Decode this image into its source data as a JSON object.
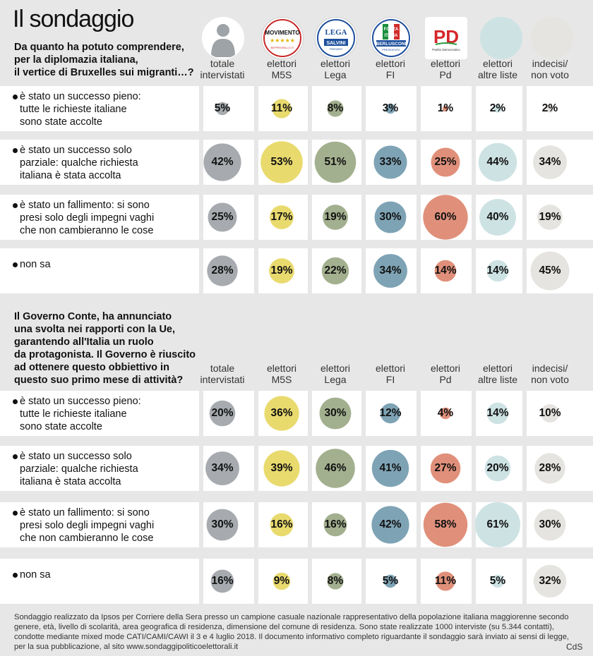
{
  "title": "Il sondaggio",
  "columns": [
    {
      "id": "totale",
      "label": "totale\nintervistati",
      "icon": "person-silhouette-icon",
      "icon_color": "#9ea3a7"
    },
    {
      "id": "m5s",
      "label": "elettori\nM5S",
      "icon": "movimento-5-stelle-logo-icon",
      "icon_color": "#ffffff"
    },
    {
      "id": "lega",
      "label": "elettori\nLega",
      "icon": "lega-salvini-logo-icon",
      "icon_color": "#ffffff"
    },
    {
      "id": "fi",
      "label": "elettori\nFI",
      "icon": "forza-italia-logo-icon",
      "icon_color": "#ffffff"
    },
    {
      "id": "pd",
      "label": "elettori\nPd",
      "icon": "partito-democratico-logo-icon",
      "icon_color": "#ffffff"
    },
    {
      "id": "altre",
      "label": "elettori\naltre liste",
      "icon": "altre-liste-circle-icon",
      "icon_color": "#cde2e3"
    },
    {
      "id": "indecisi",
      "label": "indecisi/\nnon voto",
      "icon": "indecisi-circle-icon",
      "icon_color": "#e6e4e0"
    }
  ],
  "logos": {
    "m5s": {
      "line1": "MOVIMENTO",
      "line2": "★★★★★",
      "line3": "BEPPEGRILLO.IT"
    },
    "lega": {
      "line1": "LEGA",
      "line2": "SALVINI",
      "line3": "PREMIER"
    },
    "fi": {
      "line1": "FORZA",
      "line2": "ITALIA",
      "line3": "BERLUSCONI",
      "line4": "PRESIDENTE"
    },
    "pd": {
      "line1": "PD",
      "line2": "Partito Democratico"
    }
  },
  "colors": {
    "totale": "#a7abaf",
    "m5s": "#e9da6e",
    "lega": "#a3b08f",
    "fi": "#7ea3b5",
    "pd": "#e0907a",
    "altre": "#cde2e3",
    "indecisi": "#e6e4e0"
  },
  "chart_data": [
    {
      "type": "table",
      "title": "Da quanto ha potuto comprendere,\nper la diplomazia italiana,\nil vertice di Bruxelles sui migranti…?",
      "series_names": [
        "totale intervistati",
        "elettori M5S",
        "elettori Lega",
        "elettori FI",
        "elettori Pd",
        "elettori altre liste",
        "indecisi/non voto"
      ],
      "rows": [
        {
          "label": "è stato un successo pieno:\ntutte le richieste italiane\nsono state accolte",
          "values": [
            5,
            11,
            8,
            3,
            1,
            2,
            2
          ],
          "labels": [
            "5%",
            "11%",
            "8%",
            "3%",
            "1%",
            "2%",
            "2%"
          ]
        },
        {
          "label": "è stato un successo solo\nparziale: qualche richiesta\nitaliana è stata accolta",
          "values": [
            42,
            53,
            51,
            33,
            25,
            44,
            34
          ],
          "labels": [
            "42%",
            "53%",
            "51%",
            "33%",
            "25%",
            "44%",
            "34%"
          ]
        },
        {
          "label": "è stato un fallimento: si sono\npresi solo degli impegni vaghi\nche non cambieranno le cose",
          "values": [
            25,
            17,
            19,
            30,
            60,
            40,
            19
          ],
          "labels": [
            "25%",
            "17%",
            "19%",
            "30%",
            "60%",
            "40%",
            "19%"
          ]
        },
        {
          "label": "non sa",
          "values": [
            28,
            19,
            22,
            34,
            14,
            14,
            45
          ],
          "labels": [
            "28%",
            "19%",
            "22%",
            "34%",
            "14%",
            "14%",
            "45%"
          ]
        }
      ]
    },
    {
      "type": "table",
      "title": "Il Governo Conte, ha annunciato\nuna svolta nei rapporti con la Ue,\ngarantendo all'Italia un ruolo\nda protagonista. Il Governo è riuscito\nad ottenere questo obbiettivo in\nquesto suo primo mese di attività?",
      "series_names": [
        "totale intervistati",
        "elettori M5S",
        "elettori Lega",
        "elettori FI",
        "elettori Pd",
        "elettori altre liste",
        "indecisi/non voto"
      ],
      "rows": [
        {
          "label": "è stato un successo pieno:\ntutte le richieste italiane\nsono state accolte",
          "values": [
            20,
            36,
            30,
            12,
            4,
            14,
            10
          ],
          "labels": [
            "20%",
            "36%",
            "30%",
            "12%",
            "4%",
            "14%",
            "10%"
          ]
        },
        {
          "label": "è stato un successo solo\nparziale: qualche richiesta\nitaliana è stata accolta",
          "values": [
            34,
            39,
            46,
            41,
            27,
            20,
            28
          ],
          "labels": [
            "34%",
            "39%",
            "46%",
            "41%",
            "27%",
            "20%",
            "28%"
          ]
        },
        {
          "label": "è stato un fallimento: si sono\npresi solo degli impegni vaghi\nche non cambieranno le cose",
          "values": [
            30,
            16,
            16,
            42,
            58,
            61,
            30
          ],
          "labels": [
            "30%",
            "16%",
            "16%",
            "42%",
            "58%",
            "61%",
            "30%"
          ]
        },
        {
          "label": "non sa",
          "values": [
            16,
            9,
            8,
            5,
            11,
            5,
            32
          ],
          "labels": [
            "16%",
            "9%",
            "8%",
            "5%",
            "11%",
            "5%",
            "32%"
          ]
        }
      ]
    }
  ],
  "footer": "Sondaggio realizzato da Ipsos per Corriere della Sera presso un campione casuale nazionale rappresentativo della popolazione italiana maggiorenne secondo genere, età, livello di scolarità, area geografica di residenza, dimensione del comune di residenza. Sono state realizzate 1000 interviste (su 5.344 contatti), condotte mediante mixed mode CATI/CAMI/CAWI il 3 e 4 luglio 2018. Il documento informativo completo riguardante il sondaggio sarà inviato ai sensi di legge, per la sua pubblicazione, al sito www.sondaggipoliticoelettorali.it",
  "credit": "CdS"
}
